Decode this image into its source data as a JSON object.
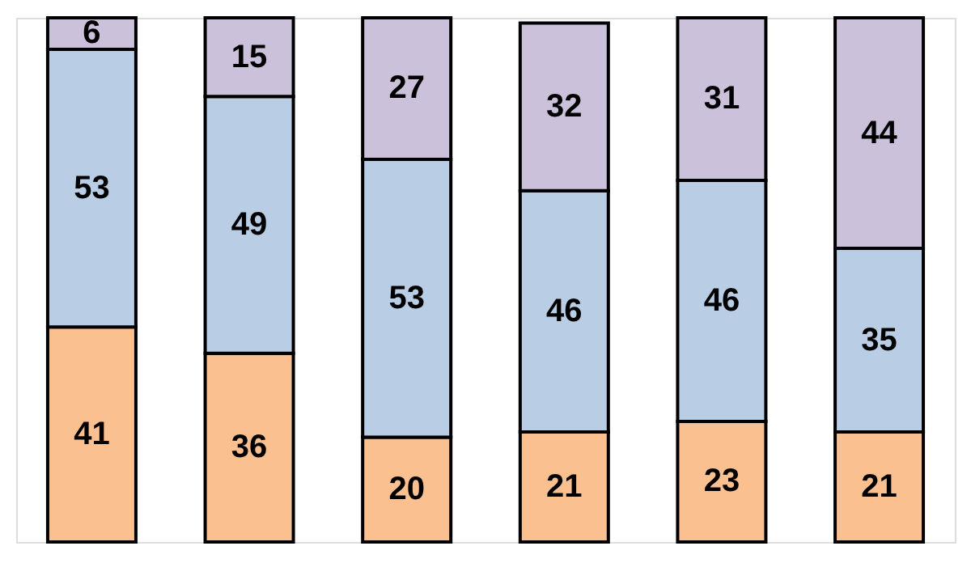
{
  "chart_data": {
    "type": "bar",
    "stacked": true,
    "data_labels": true,
    "legend": false,
    "ylim": [
      0,
      100
    ],
    "tick_labels": false,
    "categories": [
      null,
      null,
      null,
      null,
      null,
      null
    ],
    "series": [
      {
        "color": "#fac090",
        "values": [
          41,
          36,
          20,
          21,
          23,
          21
        ]
      },
      {
        "color": "#b9cde5",
        "values": [
          53,
          49,
          53,
          46,
          46,
          35
        ]
      },
      {
        "color": "#ccc1da",
        "values": [
          6,
          15,
          27,
          32,
          31,
          44
        ]
      }
    ]
  }
}
